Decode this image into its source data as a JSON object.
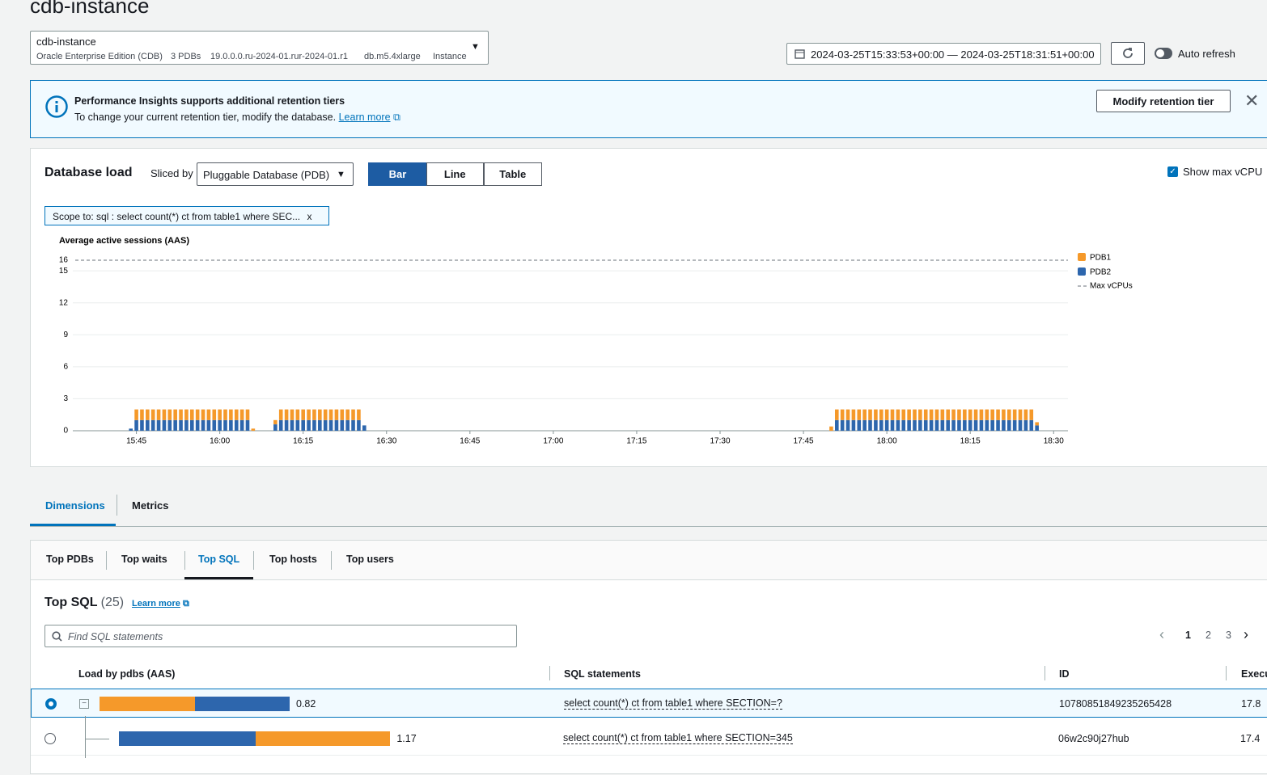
{
  "header": {
    "title": "cdb-instance"
  },
  "instance_selector": {
    "name": "cdb-instance",
    "details": [
      "Oracle Enterprise Edition (CDB)",
      "3 PDBs",
      "19.0.0.0.ru-2024-01.rur-2024-01.r1",
      "db.m5.4xlarge",
      "Instance"
    ]
  },
  "time_range": "2024-03-25T15:33:53+00:00 — 2024-03-25T18:31:51+00:00",
  "auto_refresh": "Auto refresh",
  "banner": {
    "title": "Performance Insights supports additional retention tiers",
    "text": "To change your current retention tier, modify the database.",
    "link": "Learn more",
    "button": "Modify retention tier"
  },
  "load_panel": {
    "title": "Database load",
    "sliced_by_label": "Sliced by",
    "sliced_by": "Pluggable Database (PDB)",
    "views": [
      "Bar",
      "Line",
      "Table"
    ],
    "selected_view": 0,
    "show_max_vcpu": "Show max vCPU",
    "scope": "Scope to: sql : select count(*) ct from table1 where SEC...",
    "scope_close": "x"
  },
  "chart_data": {
    "type": "bar",
    "stacked": true,
    "y_label": "Average active sessions (AAS)",
    "x": [
      "15:44",
      "15:45",
      "15:46",
      "15:47",
      "15:48",
      "15:49",
      "15:50",
      "15:51",
      "15:52",
      "15:53",
      "15:54",
      "15:55",
      "15:56",
      "15:57",
      "15:58",
      "15:59",
      "16:00",
      "16:01",
      "16:02",
      "16:03",
      "16:04",
      "16:05",
      "16:06",
      "16:10",
      "16:11",
      "16:12",
      "16:13",
      "16:14",
      "16:15",
      "16:16",
      "16:17",
      "16:18",
      "16:19",
      "16:20",
      "16:21",
      "16:22",
      "16:23",
      "16:24",
      "16:25",
      "16:26",
      "17:50",
      "17:51",
      "17:52",
      "17:53",
      "17:54",
      "17:55",
      "17:56",
      "17:57",
      "17:58",
      "17:59",
      "18:00",
      "18:01",
      "18:02",
      "18:03",
      "18:04",
      "18:05",
      "18:06",
      "18:07",
      "18:08",
      "18:09",
      "18:10",
      "18:11",
      "18:12",
      "18:13",
      "18:14",
      "18:15",
      "18:16",
      "18:17",
      "18:18",
      "18:19",
      "18:20",
      "18:21",
      "18:22",
      "18:23",
      "18:24",
      "18:25",
      "18:26",
      "18:27"
    ],
    "series": [
      {
        "name": "PDB1",
        "color": "#f5992a",
        "values": [
          0,
          1,
          1,
          1,
          1,
          1,
          1,
          1,
          1,
          1,
          1,
          1,
          1,
          1,
          1,
          1,
          1,
          1,
          1,
          1,
          1,
          1,
          0.2,
          0.4,
          1,
          1,
          1,
          1,
          1,
          1,
          1,
          1,
          1,
          1,
          1,
          1,
          1,
          1,
          1,
          0,
          0.4,
          1,
          1,
          1,
          1,
          1,
          1,
          1,
          1,
          1,
          1,
          1,
          1,
          1,
          1,
          1,
          1,
          1,
          1,
          1,
          1,
          1,
          1,
          1,
          1,
          1,
          1,
          1,
          1,
          1,
          1,
          1,
          1,
          1,
          1,
          1,
          1,
          0.3
        ]
      },
      {
        "name": "PDB2",
        "color": "#2d66ad",
        "values": [
          0.2,
          1,
          1,
          1,
          1,
          1,
          1,
          1,
          1,
          1,
          1,
          1,
          1,
          1,
          1,
          1,
          1,
          1,
          1,
          1,
          1,
          1,
          0,
          0.6,
          1,
          1,
          1,
          1,
          1,
          1,
          1,
          1,
          1,
          1,
          1,
          1,
          1,
          1,
          1,
          0.5,
          0,
          1,
          1,
          1,
          1,
          1,
          1,
          1,
          1,
          1,
          1,
          1,
          1,
          1,
          1,
          1,
          1,
          1,
          1,
          1,
          1,
          1,
          1,
          1,
          1,
          1,
          1,
          1,
          1,
          1,
          1,
          1,
          1,
          1,
          1,
          1,
          1,
          0.5
        ]
      }
    ],
    "xlim": [
      "15:34",
      "18:32"
    ],
    "xticks": [
      "15:45",
      "16:00",
      "16:15",
      "16:30",
      "16:45",
      "17:00",
      "17:15",
      "17:30",
      "17:45",
      "18:00",
      "18:15",
      "18:30"
    ],
    "ylim": [
      0,
      16.5
    ],
    "yticks": [
      0,
      3,
      6,
      9,
      12,
      15
    ],
    "grid": true,
    "max_vcpu": 16,
    "max_vcpu_label": "Max vCPUs",
    "legend": "right"
  },
  "tabs": {
    "items": [
      "Dimensions",
      "Metrics"
    ],
    "selected": 0
  },
  "sub_tabs": {
    "items": [
      "Top PDBs",
      "Top waits",
      "Top SQL",
      "Top hosts",
      "Top users"
    ],
    "selected": 2
  },
  "top_sql": {
    "title": "Top SQL",
    "count": "(25)",
    "link": "Learn more",
    "search_placeholder": "Find SQL statements",
    "pages": [
      1,
      2,
      3
    ],
    "current_page": 0,
    "columns": [
      "Load by pdbs (AAS)",
      "SQL statements",
      "ID",
      "Execu"
    ],
    "rows": [
      {
        "load": 0.82,
        "bars": [
          {
            "series": 0,
            "value": 0.41
          },
          {
            "series": 1,
            "value": 0.41
          }
        ],
        "sql": "select count(*) ct from table1 where SECTION=?",
        "id": "10780851849235265428",
        "exec": "17.8"
      },
      {
        "load": 1.17,
        "bars": [
          {
            "series": 1,
            "value": 0.59
          },
          {
            "series": 0,
            "value": 0.58
          }
        ],
        "sql": "select count(*) ct from table1 where SECTION=345",
        "id": "06w2c90j27hub",
        "exec": "17.4"
      }
    ],
    "selected": 0
  }
}
